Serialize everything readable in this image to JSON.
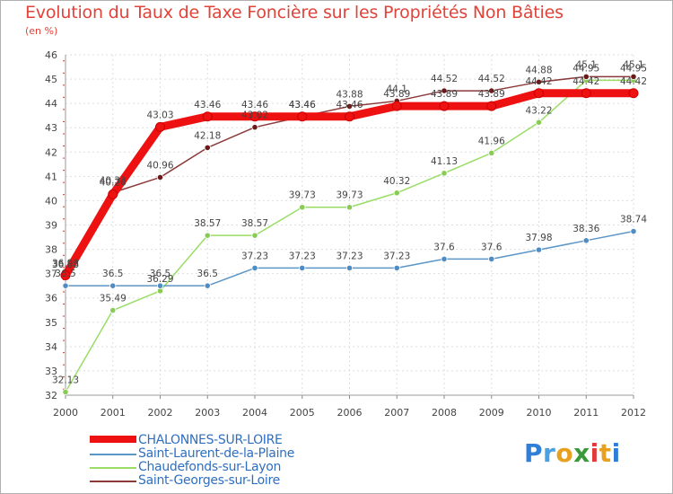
{
  "title": "Evolution du Taux de Taxe Foncière sur les Propriétés Non Bâties",
  "unit": "(en %)",
  "logo": {
    "letters": [
      "P",
      "r",
      "o",
      "x",
      "i",
      "t",
      "i"
    ],
    "colors": [
      "#2f7fd8",
      "#4aa0e0",
      "#e8a020",
      "#3a9a3a",
      "#e03a3a",
      "#e8a020",
      "#2f7fd8"
    ]
  },
  "chart_data": {
    "type": "line",
    "title": "Evolution du Taux de Taxe Foncière sur les Propriétés Non Bâties",
    "ylabel": "(en %)",
    "xlabel": "",
    "ylim": [
      32,
      46
    ],
    "yticks": [
      "32",
      "33",
      "34",
      "35",
      "36",
      "37",
      "38",
      "39",
      "40",
      "41",
      "42",
      "43",
      "44",
      "45",
      "46"
    ],
    "categories": [
      "2000",
      "2001",
      "2002",
      "2003",
      "2004",
      "2005",
      "2006",
      "2007",
      "2008",
      "2009",
      "2010",
      "2011",
      "2012"
    ],
    "grid": true,
    "series": [
      {
        "name": "CHALONNES-SUR-LOIRE",
        "color": "#ee1111",
        "marker": "#ee1111",
        "values": [
          36.93,
          40.26,
          43.03,
          43.46,
          43.46,
          43.46,
          43.46,
          43.89,
          43.89,
          43.89,
          44.42,
          44.42,
          44.42
        ],
        "labels": [
          "36.93",
          "40.26",
          "43.03",
          "43.46",
          "43.46",
          "43.46",
          "43.46",
          "43.89",
          "43.89",
          "43.89",
          "44.42",
          "44.42",
          "44.42"
        ]
      },
      {
        "name": "Saint-Laurent-de-la-Plaine",
        "color": "#5b96c8",
        "marker": "#4f8cc3",
        "values": [
          36.5,
          36.5,
          36.5,
          36.5,
          37.23,
          37.23,
          37.23,
          37.23,
          37.6,
          37.6,
          37.98,
          38.36,
          38.74
        ],
        "labels": [
          "36.5",
          "36.5",
          "36.5",
          "36.5",
          "37.23",
          "37.23",
          "37.23",
          "37.23",
          "37.6",
          "37.6",
          "37.98",
          "38.36",
          "38.74"
        ]
      },
      {
        "name": "Chaudefonds-sur-Layon",
        "color": "#99dd66",
        "marker": "#88cc55",
        "values": [
          32.13,
          35.49,
          36.29,
          38.57,
          38.57,
          39.73,
          39.73,
          40.32,
          41.13,
          41.96,
          43.22,
          44.95,
          44.95
        ],
        "labels": [
          "32.13",
          "35.49",
          "36.29",
          "38.57",
          "38.57",
          "39.73",
          "39.73",
          "40.32",
          "41.13",
          "41.96",
          "43.22",
          "44.95",
          "44.95"
        ]
      },
      {
        "name": "Saint-Georges-sur-Loire",
        "color": "#8b3a3a",
        "marker": "#6b1a1a",
        "values": [
          36.88,
          40.33,
          40.96,
          42.18,
          43.02,
          43.46,
          43.88,
          44.1,
          44.52,
          44.52,
          44.88,
          45.1,
          45.1
        ],
        "labels": [
          "36.88",
          "40.33",
          "40.96",
          "42.18",
          "43.02",
          "43.46",
          "43.88",
          "44.1",
          "44.52",
          "44.52",
          "44.88",
          "45.1",
          "45.1"
        ]
      }
    ]
  }
}
